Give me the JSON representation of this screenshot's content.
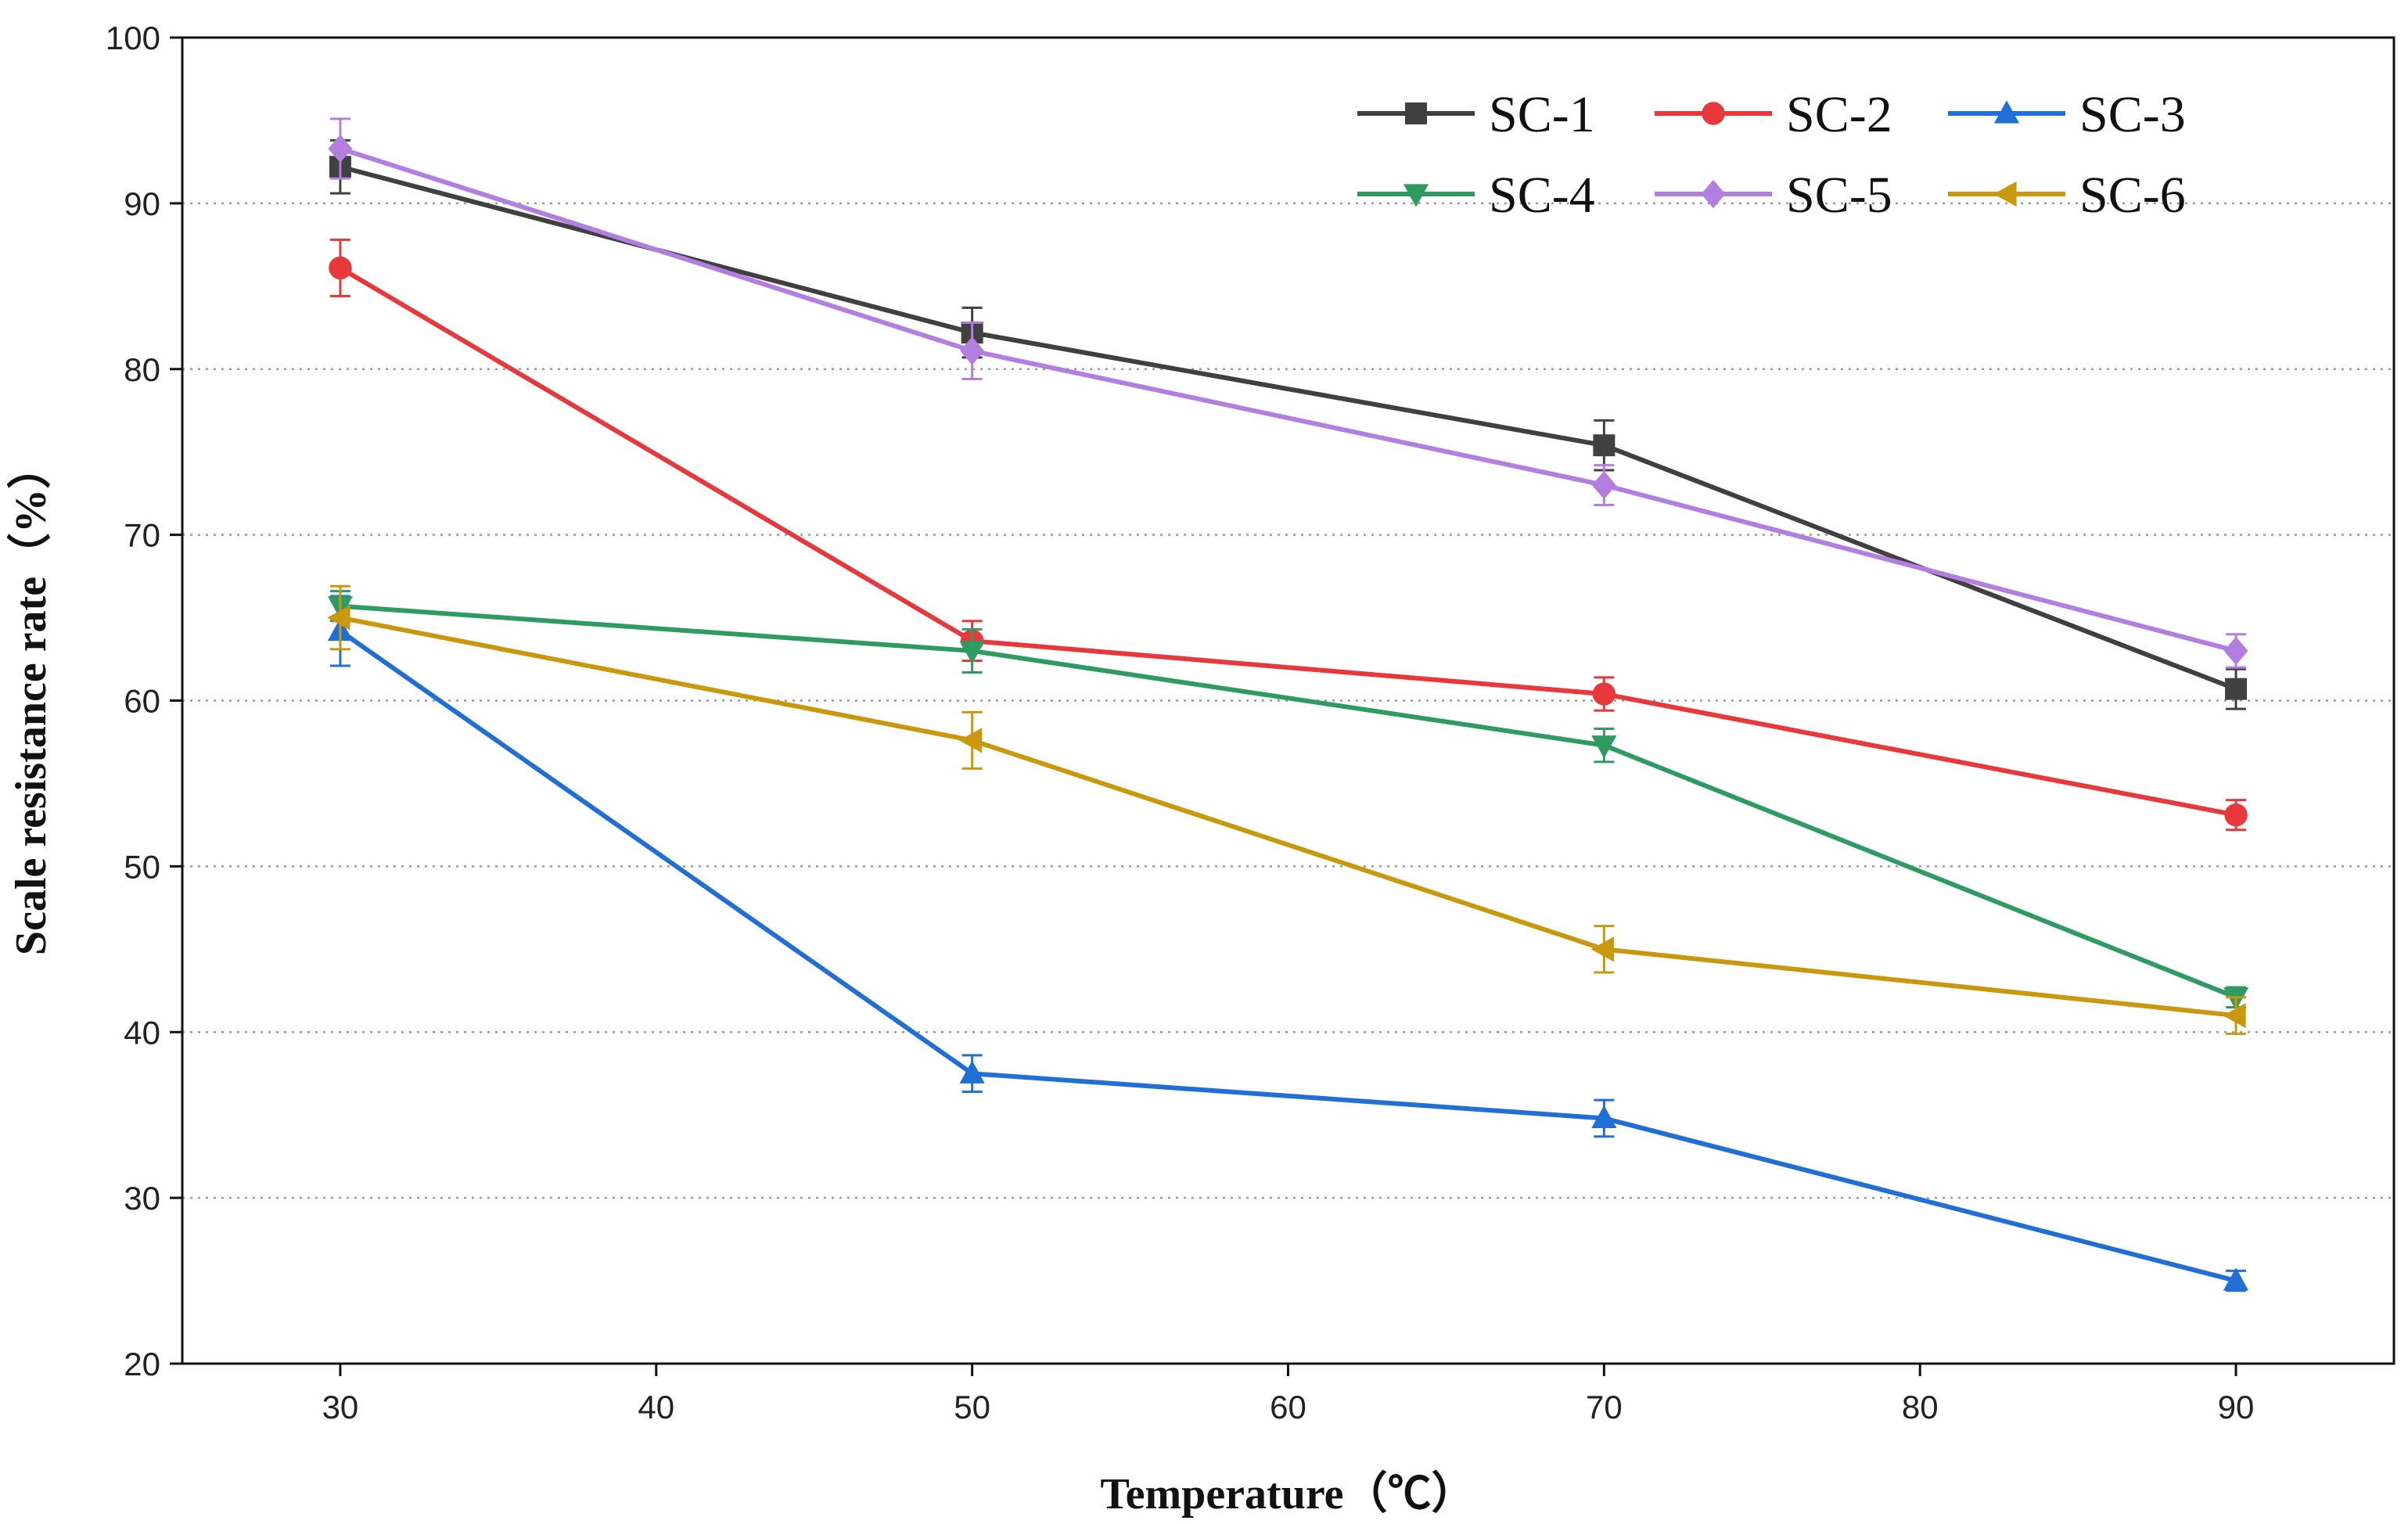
{
  "chart_data": {
    "type": "line",
    "title": "",
    "xlabel": "Temperature（℃）",
    "ylabel": "Scale resistance rate（%）",
    "x": [
      30,
      50,
      70,
      90
    ],
    "xlim": [
      25,
      95
    ],
    "ylim": [
      20,
      100
    ],
    "xticks": [
      30,
      40,
      50,
      60,
      70,
      80,
      90
    ],
    "yticks": [
      20,
      30,
      40,
      50,
      60,
      70,
      80,
      90,
      100
    ],
    "grid": "horizontal-dotted",
    "legend_position": "top-right",
    "series": [
      {
        "name": "SC-1",
        "color": "#404040",
        "marker": "square",
        "values": [
          92.2,
          82.2,
          75.4,
          60.7
        ],
        "errors": [
          1.6,
          1.5,
          1.5,
          1.2
        ]
      },
      {
        "name": "SC-2",
        "color": "#e8383b",
        "marker": "circle",
        "values": [
          86.1,
          63.6,
          60.4,
          53.1
        ],
        "errors": [
          1.7,
          1.2,
          1.0,
          0.9
        ]
      },
      {
        "name": "SC-3",
        "color": "#1f6fd6",
        "marker": "triangle-up",
        "values": [
          64.2,
          37.5,
          34.8,
          25.0
        ],
        "errors": [
          2.1,
          1.1,
          1.1,
          0.6
        ]
      },
      {
        "name": "SC-4",
        "color": "#2e9c62",
        "marker": "triangle-down",
        "values": [
          65.7,
          63.0,
          57.3,
          42.1
        ],
        "errors": [
          0.9,
          1.3,
          1.0,
          0.6
        ]
      },
      {
        "name": "SC-5",
        "color": "#b27fe0",
        "marker": "diamond",
        "values": [
          93.3,
          81.1,
          73.0,
          63.0
        ],
        "errors": [
          1.8,
          1.7,
          1.2,
          1.0
        ]
      },
      {
        "name": "SC-6",
        "color": "#c9980c",
        "marker": "triangle-left",
        "values": [
          65.0,
          57.6,
          45.0,
          41.0
        ],
        "errors": [
          1.9,
          1.7,
          1.4,
          1.1
        ]
      }
    ]
  }
}
